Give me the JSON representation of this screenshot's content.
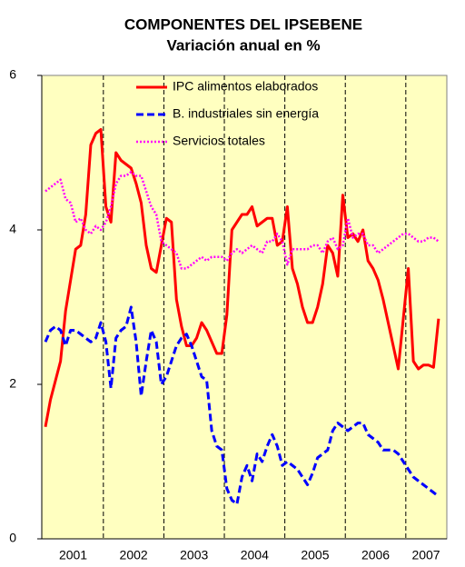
{
  "chart_data": {
    "type": "line",
    "title": "COMPONENTES DEL IPSEBENE",
    "subtitle": "Variación anual en %",
    "categories": [
      null,
      null,
      null,
      null,
      null,
      null,
      "2001",
      null,
      null,
      null,
      null,
      null,
      null,
      null,
      null,
      null,
      null,
      null,
      "2002",
      null,
      null,
      null,
      null,
      null,
      null,
      null,
      null,
      null,
      null,
      null,
      "2003",
      null,
      null,
      null,
      null,
      null,
      null,
      null,
      null,
      null,
      null,
      null,
      "2004",
      null,
      null,
      null,
      null,
      null,
      null,
      null,
      null,
      null,
      null,
      null,
      "2005",
      null,
      null,
      null,
      null,
      null,
      null,
      null,
      null,
      null,
      null,
      null,
      "2006",
      null,
      null,
      null,
      null,
      null,
      null,
      null,
      null,
      null,
      "2007",
      null,
      null
    ],
    "series": [
      {
        "name": "IPC alimentos elaborados",
        "color": "#ff0000",
        "values": [
          1.45,
          1.8,
          2.05,
          2.3,
          2.95,
          3.35,
          3.75,
          3.8,
          4.2,
          5.1,
          5.25,
          5.3,
          4.3,
          4.1,
          5.0,
          4.9,
          4.85,
          4.8,
          4.6,
          4.35,
          3.8,
          3.5,
          3.45,
          3.8,
          4.15,
          4.1,
          3.1,
          2.75,
          2.5,
          2.5,
          2.6,
          2.8,
          2.7,
          2.55,
          2.4,
          2.4,
          2.9,
          4.0,
          4.1,
          4.2,
          4.2,
          4.3,
          4.05,
          4.1,
          4.15,
          4.15,
          3.8,
          3.85,
          4.3,
          3.5,
          3.3,
          3.0,
          2.8,
          2.8,
          3.0,
          3.3,
          3.8,
          3.7,
          3.4,
          4.45,
          3.9,
          3.95,
          3.85,
          4.0,
          3.6,
          3.5,
          3.35,
          3.1,
          2.8,
          2.5,
          2.2,
          2.85,
          3.5,
          2.3,
          2.2,
          2.25,
          2.25,
          2.22,
          2.85
        ]
      },
      {
        "name": "B. industriales sin energía",
        "color": "#0000ff",
        "values": [
          2.55,
          2.7,
          2.75,
          2.7,
          2.5,
          2.7,
          2.7,
          2.65,
          2.6,
          2.55,
          2.6,
          2.8,
          2.55,
          1.95,
          2.6,
          2.7,
          2.75,
          3.0,
          2.55,
          1.85,
          2.3,
          2.7,
          2.55,
          2.0,
          2.1,
          2.3,
          2.5,
          2.6,
          2.65,
          2.5,
          2.3,
          2.1,
          2.05,
          1.4,
          1.2,
          1.15,
          0.65,
          0.5,
          0.45,
          0.8,
          0.95,
          0.75,
          1.1,
          1.0,
          1.2,
          1.35,
          1.2,
          0.95,
          1.0,
          0.95,
          0.9,
          0.8,
          0.7,
          0.85,
          1.05,
          1.1,
          1.15,
          1.4,
          1.5,
          1.45,
          1.4,
          1.45,
          1.5,
          1.5,
          1.35,
          1.3,
          1.25,
          1.15,
          1.15,
          1.15,
          1.1,
          1.0,
          0.9,
          0.8,
          0.75,
          0.7,
          0.65,
          0.6,
          0.55
        ]
      },
      {
        "name": "Servicios totales",
        "color": "#ff00ff",
        "values": [
          4.5,
          4.55,
          4.6,
          4.65,
          4.4,
          4.35,
          4.1,
          4.15,
          4.0,
          3.95,
          4.05,
          4.0,
          4.1,
          4.3,
          4.6,
          4.7,
          4.7,
          4.75,
          4.7,
          4.7,
          4.5,
          4.3,
          4.2,
          3.85,
          3.8,
          3.75,
          3.7,
          3.5,
          3.5,
          3.55,
          3.6,
          3.65,
          3.6,
          3.65,
          3.65,
          3.65,
          3.6,
          3.7,
          3.75,
          3.7,
          3.75,
          3.8,
          3.75,
          3.7,
          3.85,
          3.85,
          3.95,
          3.85,
          3.55,
          3.75,
          3.75,
          3.75,
          3.75,
          3.8,
          3.8,
          3.7,
          3.85,
          3.9,
          3.75,
          3.8,
          4.15,
          3.9,
          3.95,
          3.95,
          3.8,
          3.8,
          3.7,
          3.75,
          3.8,
          3.85,
          3.9,
          3.95,
          3.95,
          3.9,
          3.85,
          3.85,
          3.9,
          3.9,
          3.85
        ]
      }
    ],
    "ylim": [
      0,
      6
    ],
    "yticks": [
      0,
      2,
      4,
      6
    ]
  }
}
